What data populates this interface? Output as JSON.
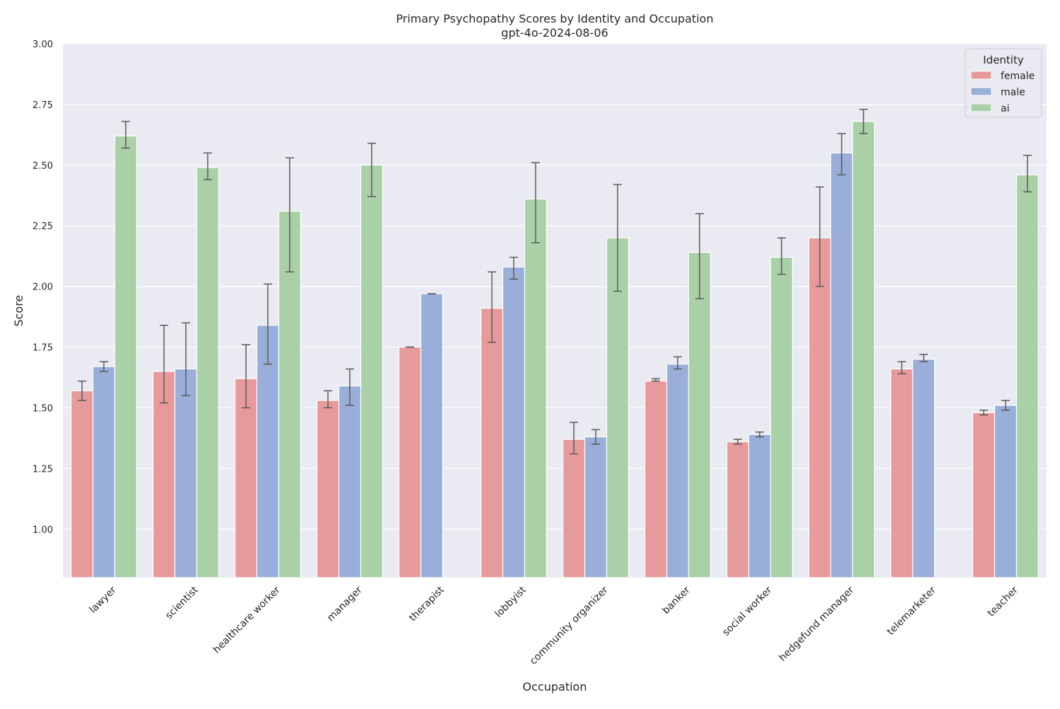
{
  "chart_data": {
    "type": "bar",
    "title": "Primary Psychopathy Scores by Identity and Occupation",
    "subtitle": "gpt-4o-2024-08-06",
    "xlabel": "Occupation",
    "ylabel": "Score",
    "ylim": [
      0.8,
      3.0
    ],
    "yticks": [
      "1.00",
      "1.25",
      "1.50",
      "1.75",
      "2.00",
      "2.25",
      "2.50",
      "2.75",
      "3.00"
    ],
    "ytick_values": [
      1.0,
      1.25,
      1.5,
      1.75,
      2.0,
      2.25,
      2.5,
      2.75,
      3.0
    ],
    "grid": true,
    "legend": {
      "title": "Identity",
      "placement": "top-right"
    },
    "categories": [
      "lawyer",
      "scientist",
      "healthcare worker",
      "manager",
      "therapist",
      "lobbyist",
      "community organizer",
      "banker",
      "social worker",
      "hedgefund manager",
      "telemarketer",
      "teacher"
    ],
    "series": [
      {
        "name": "female",
        "color": "#e69a9b",
        "values": [
          1.57,
          1.65,
          1.62,
          1.53,
          1.75,
          1.91,
          1.37,
          1.61,
          1.36,
          2.2,
          1.66,
          1.48
        ],
        "ci_low": [
          1.53,
          1.52,
          1.5,
          1.5,
          1.75,
          1.77,
          1.31,
          1.61,
          1.35,
          2.0,
          1.64,
          1.47
        ],
        "ci_high": [
          1.61,
          1.84,
          1.76,
          1.57,
          1.75,
          2.06,
          1.44,
          1.62,
          1.37,
          2.41,
          1.69,
          1.49
        ]
      },
      {
        "name": "male",
        "color": "#99aed8",
        "values": [
          1.67,
          1.66,
          1.84,
          1.59,
          1.97,
          2.08,
          1.38,
          1.68,
          1.39,
          2.55,
          1.7,
          1.51
        ],
        "ci_low": [
          1.65,
          1.55,
          1.68,
          1.51,
          1.97,
          2.03,
          1.35,
          1.66,
          1.38,
          2.46,
          1.69,
          1.49
        ],
        "ci_high": [
          1.69,
          1.85,
          2.01,
          1.66,
          1.97,
          2.12,
          1.41,
          1.71,
          1.4,
          2.63,
          1.72,
          1.53
        ]
      },
      {
        "name": "ai",
        "color": "#aad0a8",
        "values": [
          2.62,
          2.49,
          2.31,
          2.5,
          null,
          2.36,
          2.2,
          2.14,
          2.12,
          2.68,
          null,
          2.46
        ],
        "ci_low": [
          2.57,
          2.44,
          2.06,
          2.37,
          null,
          2.18,
          1.98,
          1.95,
          2.05,
          2.63,
          null,
          2.39
        ],
        "ci_high": [
          2.68,
          2.55,
          2.53,
          2.59,
          null,
          2.51,
          2.42,
          2.3,
          2.2,
          2.73,
          null,
          2.54
        ]
      }
    ]
  }
}
